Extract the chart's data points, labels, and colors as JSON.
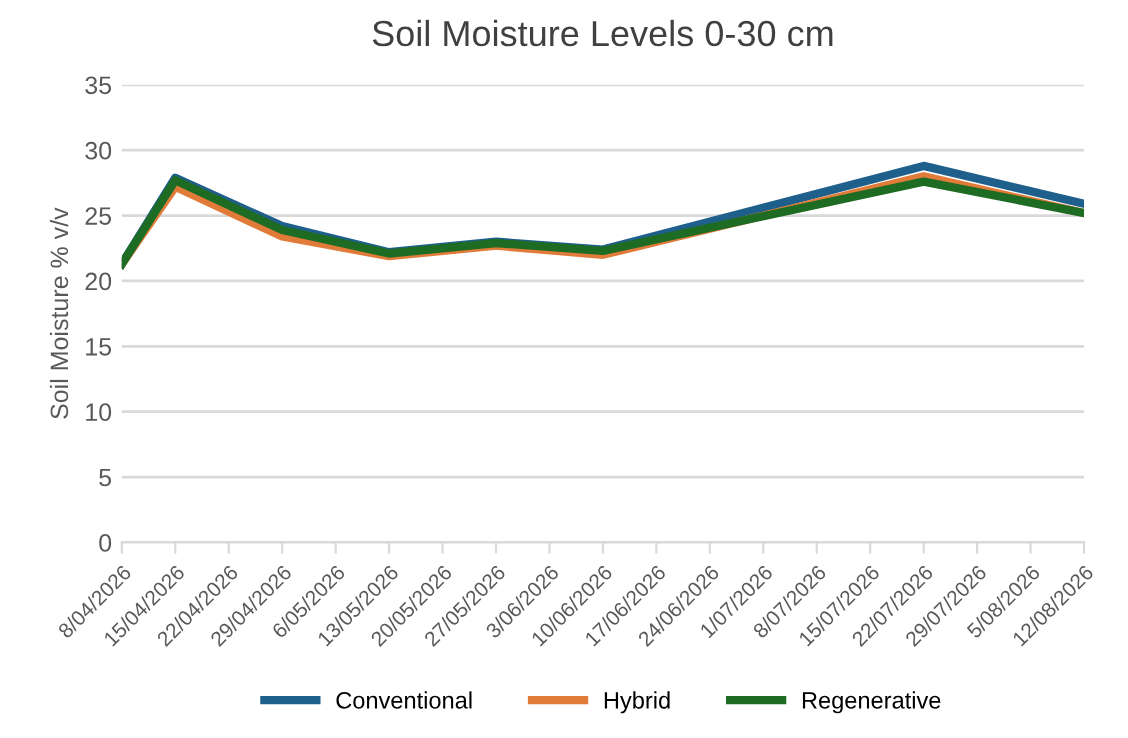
{
  "chart_data": {
    "type": "line",
    "title": "Soil Moisture Levels 0-30 cm",
    "ylabel": "Soil Moisture % v/v",
    "categories": [
      "8/04/2026",
      "15/04/2026",
      "22/04/2026",
      "29/04/2026",
      "6/05/2026",
      "13/05/2026",
      "20/05/2026",
      "27/05/2026",
      "3/06/2026",
      "10/06/2026",
      "17/06/2026",
      "24/06/2026",
      "1/07/2026",
      "8/07/2026",
      "15/07/2026",
      "22/07/2026",
      "29/07/2026",
      "5/08/2026",
      "12/08/2026"
    ],
    "series": [
      {
        "name": "Conventional",
        "color": "#1f5f8b",
        "values": [
          21.3,
          27.9,
          null,
          24.2,
          null,
          22.2,
          null,
          23.0,
          null,
          22.4,
          null,
          null,
          null,
          null,
          null,
          28.8,
          null,
          null,
          25.9
        ]
      },
      {
        "name": "Hybrid",
        "color": "#e07b39",
        "values": [
          21.3,
          27.2,
          null,
          23.4,
          null,
          21.9,
          null,
          22.7,
          null,
          22.0,
          null,
          null,
          null,
          null,
          null,
          28.0,
          null,
          null,
          25.2
        ]
      },
      {
        "name": "Regenerative",
        "color": "#1e6b24",
        "values": [
          21.3,
          27.7,
          null,
          23.9,
          null,
          22.1,
          null,
          22.9,
          null,
          22.3,
          null,
          null,
          null,
          null,
          null,
          27.6,
          null,
          null,
          25.2
        ]
      }
    ],
    "ylim": [
      0,
      35
    ],
    "yticks": [
      0,
      5,
      10,
      15,
      20,
      25,
      30,
      35
    ],
    "grid": "y",
    "legend": "bottom",
    "marker": "none",
    "line_style": "solid"
  }
}
